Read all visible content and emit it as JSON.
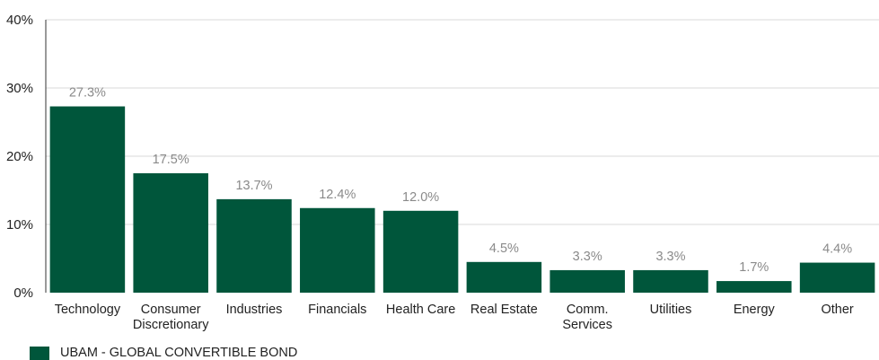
{
  "chart_data": {
    "type": "bar",
    "categories": [
      [
        "Technology"
      ],
      [
        "Consumer",
        "Discretionary"
      ],
      [
        "Industries"
      ],
      [
        "Financials"
      ],
      [
        "Health Care"
      ],
      [
        "Real Estate"
      ],
      [
        "Comm.",
        "Services"
      ],
      [
        "Utilities"
      ],
      [
        "Energy"
      ],
      [
        "Other"
      ]
    ],
    "series": [
      {
        "name": "UBAM - GLOBAL CONVERTIBLE BOND",
        "values": [
          27.3,
          17.5,
          13.7,
          12.4,
          12.0,
          4.5,
          3.3,
          3.3,
          1.7,
          4.4
        ],
        "labels": [
          "27.3%",
          "17.5%",
          "13.7%",
          "12.4%",
          "12.0%",
          "4.5%",
          "3.3%",
          "3.3%",
          "1.7%",
          "4.4%"
        ],
        "color": "#00563b"
      }
    ],
    "ylim": [
      0,
      40
    ],
    "yticks": [
      {
        "value": 0,
        "label": "0%"
      },
      {
        "value": 10,
        "label": "10%"
      },
      {
        "value": 20,
        "label": "20%"
      },
      {
        "value": 30,
        "label": "30%"
      },
      {
        "value": 40,
        "label": "40%"
      }
    ],
    "grid": true,
    "legend_position": "bottom-left",
    "title": "",
    "xlabel": "",
    "ylabel": ""
  },
  "colors": {
    "bar": "#00563b",
    "grid": "#d9d9d9",
    "axis": "#333333",
    "data_label": "#8a8a8a"
  }
}
